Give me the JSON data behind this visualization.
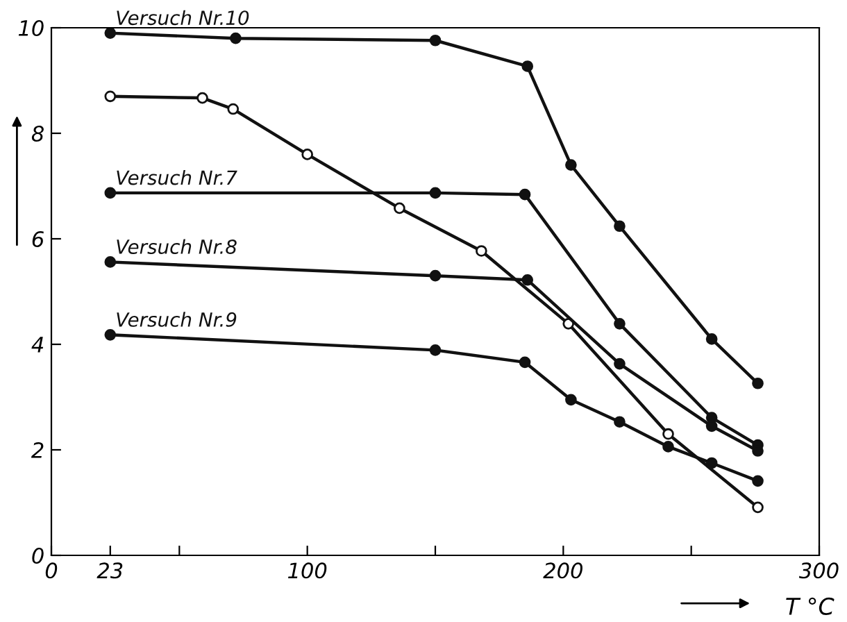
{
  "chart_data": {
    "type": "line",
    "xlabel": "T °C",
    "xlim": [
      0,
      300
    ],
    "ylim": [
      0,
      10
    ],
    "xticks": [
      0,
      23,
      {
        "value": 50,
        "label": null
      },
      100,
      {
        "value": 150,
        "label": null
      },
      200,
      {
        "value": 250,
        "label": null
      },
      300
    ],
    "yticks": [
      0,
      2,
      4,
      6,
      8,
      10
    ],
    "grid": false,
    "legend": false,
    "marker": "circle",
    "line_style": "solid",
    "series": [
      {
        "name": "Versuch Nr.10",
        "color": "#111111",
        "x": [
          23,
          72,
          150,
          186,
          203,
          222,
          258,
          276
        ],
        "values": [
          9.9,
          9.8,
          9.76,
          9.27,
          7.4,
          6.24,
          4.1,
          3.26
        ]
      },
      {
        "color": "#111111",
        "x": [
          23,
          59,
          71,
          100,
          136,
          168,
          202,
          241,
          276
        ],
        "values": [
          8.7,
          8.67,
          8.46,
          7.6,
          6.58,
          5.77,
          4.39,
          2.3,
          0.91
        ]
      },
      {
        "name": "Versuch Nr.7",
        "color": "#111111",
        "x": [
          23,
          150,
          185,
          222,
          258,
          276
        ],
        "values": [
          6.87,
          6.87,
          6.84,
          4.39,
          2.61,
          2.09
        ]
      },
      {
        "name": "Versuch Nr.8",
        "color": "#111111",
        "x": [
          23,
          150,
          186,
          222,
          258,
          276
        ],
        "values": [
          5.56,
          5.3,
          5.22,
          3.63,
          2.45,
          1.98
        ]
      },
      {
        "name": "Versuch Nr.9",
        "color": "#111111",
        "x": [
          23,
          150,
          185,
          203,
          222,
          241,
          258,
          276
        ],
        "values": [
          4.18,
          3.89,
          3.66,
          2.95,
          2.53,
          2.06,
          1.75,
          1.41
        ]
      }
    ]
  }
}
